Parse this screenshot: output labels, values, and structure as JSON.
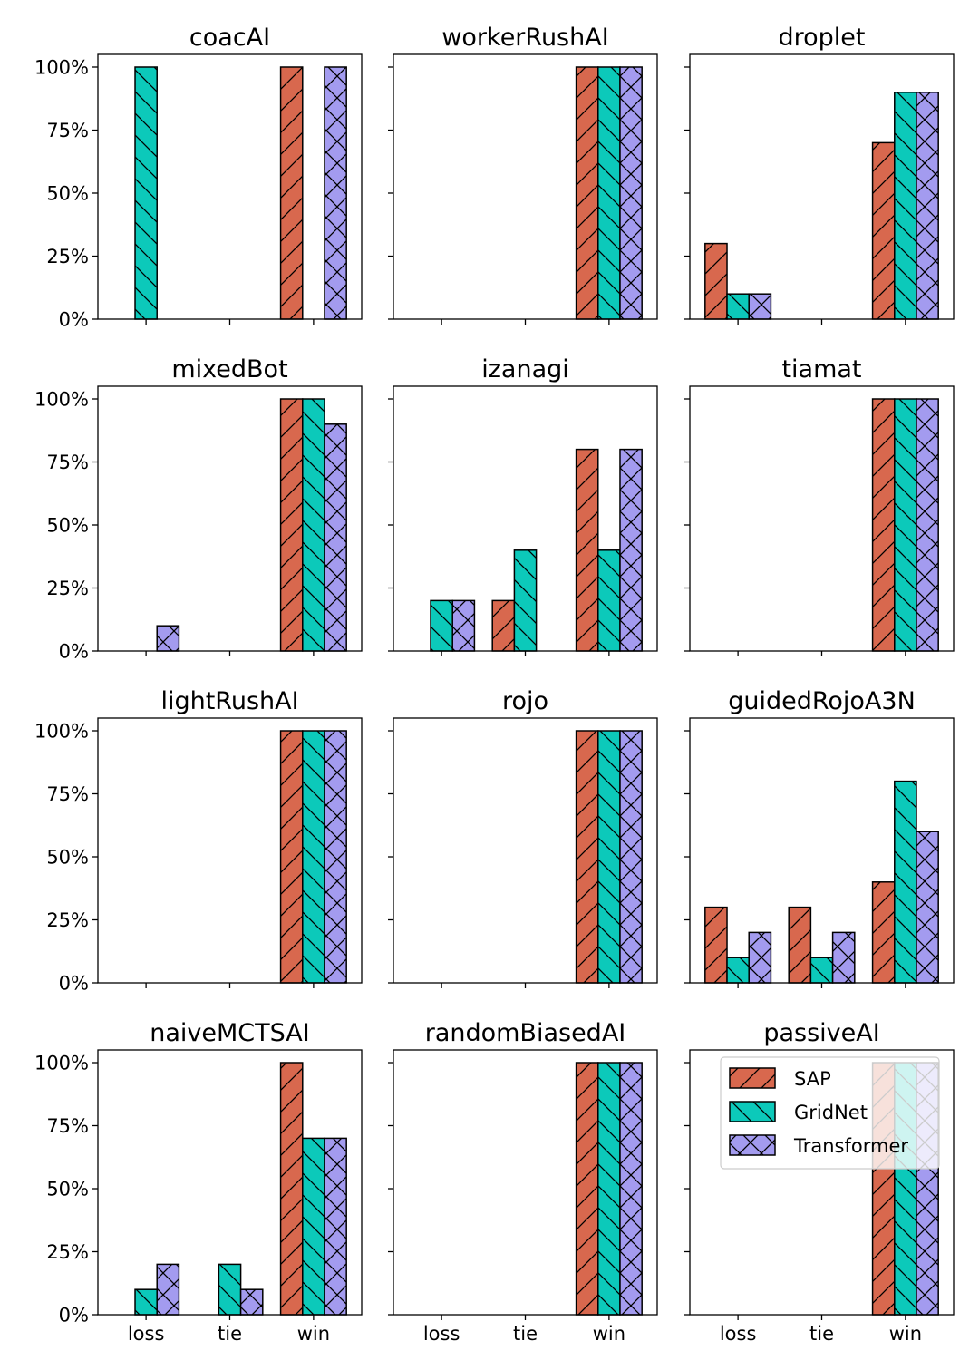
{
  "chart_data": {
    "type": "bar",
    "categories": [
      "loss",
      "tie",
      "win"
    ],
    "ylim": [
      0,
      1
    ],
    "yticks": [
      "0%",
      "25%",
      "50%",
      "75%",
      "100%"
    ],
    "series_names": [
      "SAP",
      "GridNet",
      "Transformer"
    ],
    "colors": {
      "SAP": "#d8684e",
      "GridNet": "#0cc9ba",
      "Transformer": "#a39bef"
    },
    "legend": {
      "placement": "upper-right of last panel",
      "entries": [
        "SAP",
        "GridNet",
        "Transformer"
      ]
    },
    "panels": [
      {
        "title": "coacAI",
        "series": [
          {
            "name": "SAP",
            "values": [
              0,
              0,
              1.0
            ]
          },
          {
            "name": "GridNet",
            "values": [
              1.0,
              0,
              0
            ]
          },
          {
            "name": "Transformer",
            "values": [
              0,
              0,
              1.0
            ]
          }
        ]
      },
      {
        "title": "workerRushAI",
        "series": [
          {
            "name": "SAP",
            "values": [
              0,
              0,
              1.0
            ]
          },
          {
            "name": "GridNet",
            "values": [
              0,
              0,
              1.0
            ]
          },
          {
            "name": "Transformer",
            "values": [
              0,
              0,
              1.0
            ]
          }
        ]
      },
      {
        "title": "droplet",
        "series": [
          {
            "name": "SAP",
            "values": [
              0.3,
              0,
              0.7
            ]
          },
          {
            "name": "GridNet",
            "values": [
              0.1,
              0,
              0.9
            ]
          },
          {
            "name": "Transformer",
            "values": [
              0.1,
              0,
              0.9
            ]
          }
        ]
      },
      {
        "title": "mixedBot",
        "series": [
          {
            "name": "SAP",
            "values": [
              0,
              0,
              1.0
            ]
          },
          {
            "name": "GridNet",
            "values": [
              0,
              0,
              1.0
            ]
          },
          {
            "name": "Transformer",
            "values": [
              0.1,
              0,
              0.9
            ]
          }
        ]
      },
      {
        "title": "izanagi",
        "series": [
          {
            "name": "SAP",
            "values": [
              0,
              0.2,
              0.8
            ]
          },
          {
            "name": "GridNet",
            "values": [
              0.2,
              0.4,
              0.4
            ]
          },
          {
            "name": "Transformer",
            "values": [
              0.2,
              0,
              0.8
            ]
          }
        ]
      },
      {
        "title": "tiamat",
        "series": [
          {
            "name": "SAP",
            "values": [
              0,
              0,
              1.0
            ]
          },
          {
            "name": "GridNet",
            "values": [
              0,
              0,
              1.0
            ]
          },
          {
            "name": "Transformer",
            "values": [
              0,
              0,
              1.0
            ]
          }
        ]
      },
      {
        "title": "lightRushAI",
        "series": [
          {
            "name": "SAP",
            "values": [
              0,
              0,
              1.0
            ]
          },
          {
            "name": "GridNet",
            "values": [
              0,
              0,
              1.0
            ]
          },
          {
            "name": "Transformer",
            "values": [
              0,
              0,
              1.0
            ]
          }
        ]
      },
      {
        "title": "rojo",
        "series": [
          {
            "name": "SAP",
            "values": [
              0,
              0,
              1.0
            ]
          },
          {
            "name": "GridNet",
            "values": [
              0,
              0,
              1.0
            ]
          },
          {
            "name": "Transformer",
            "values": [
              0,
              0,
              1.0
            ]
          }
        ]
      },
      {
        "title": "guidedRojoA3N",
        "series": [
          {
            "name": "SAP",
            "values": [
              0.3,
              0.3,
              0.4
            ]
          },
          {
            "name": "GridNet",
            "values": [
              0.1,
              0.1,
              0.8
            ]
          },
          {
            "name": "Transformer",
            "values": [
              0.2,
              0.2,
              0.6
            ]
          }
        ]
      },
      {
        "title": "naiveMCTSAI",
        "series": [
          {
            "name": "SAP",
            "values": [
              0,
              0,
              1.0
            ]
          },
          {
            "name": "GridNet",
            "values": [
              0.1,
              0.2,
              0.7
            ]
          },
          {
            "name": "Transformer",
            "values": [
              0.2,
              0.1,
              0.7
            ]
          }
        ]
      },
      {
        "title": "randomBiasedAI",
        "series": [
          {
            "name": "SAP",
            "values": [
              0,
              0,
              1.0
            ]
          },
          {
            "name": "GridNet",
            "values": [
              0,
              0,
              1.0
            ]
          },
          {
            "name": "Transformer",
            "values": [
              0,
              0,
              1.0
            ]
          }
        ]
      },
      {
        "title": "passiveAI",
        "series": [
          {
            "name": "SAP",
            "values": [
              0,
              0,
              1.0
            ]
          },
          {
            "name": "GridNet",
            "values": [
              0,
              0,
              1.0
            ]
          },
          {
            "name": "Transformer",
            "values": [
              0,
              0,
              1.0
            ]
          }
        ]
      }
    ]
  }
}
